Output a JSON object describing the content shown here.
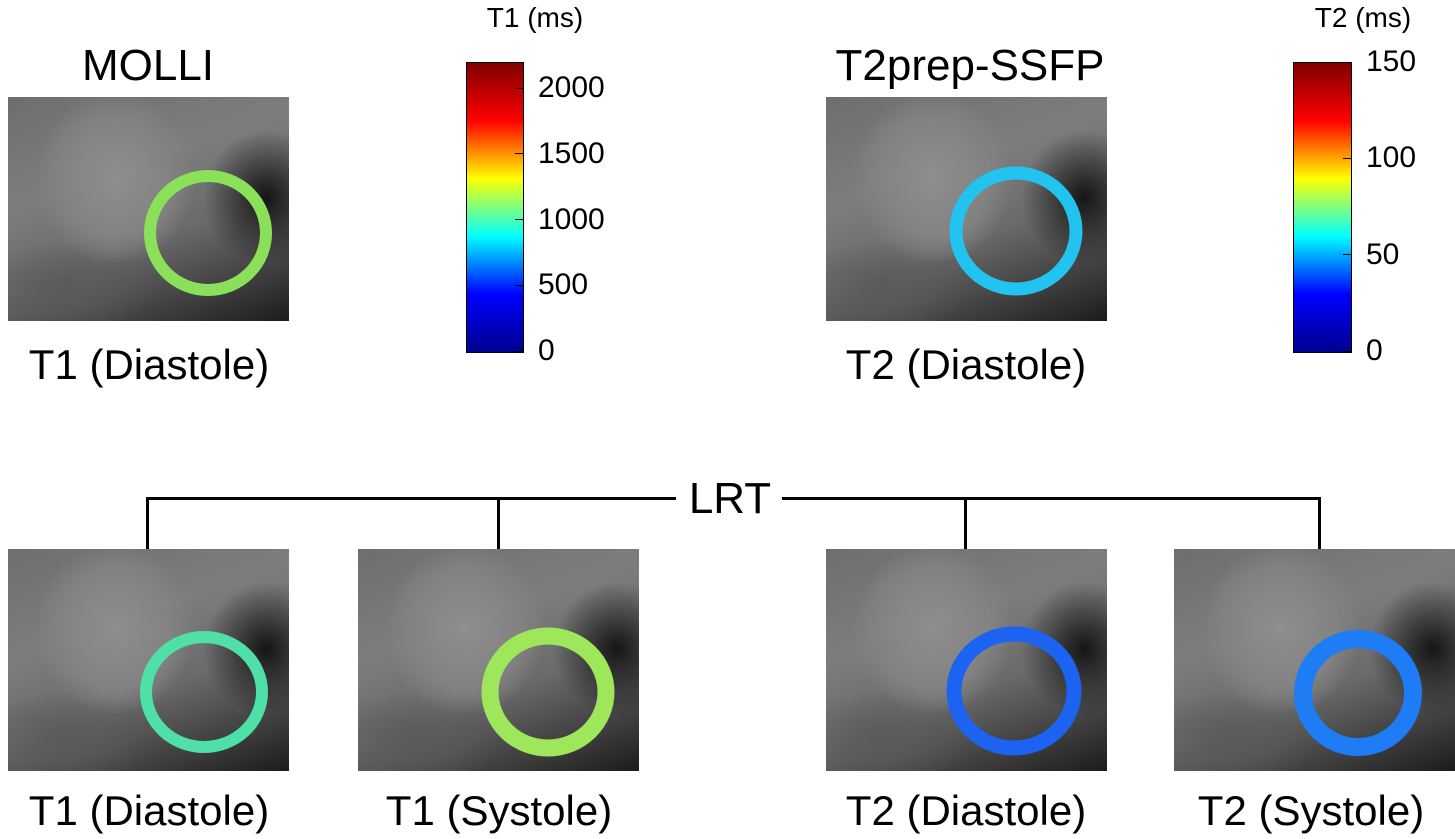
{
  "top": {
    "molli_title": "MOLLI",
    "t2prep_title": "T2prep-SSFP",
    "molli_caption": "T1 (Diastole)",
    "t2prep_caption": "T2 (Diastole)"
  },
  "colorbars": {
    "t1": {
      "unit": "T1 (ms)",
      "min": 0,
      "max": 2200,
      "ticks": [
        "2000",
        "1500",
        "1000",
        "500",
        "0"
      ],
      "tick_values": [
        2000,
        1500,
        1000,
        500,
        0
      ]
    },
    "t2": {
      "unit": "T2 (ms)",
      "min": 0,
      "max": 150,
      "ticks": [
        "150",
        "100",
        "50",
        "0"
      ],
      "tick_values": [
        150,
        100,
        50,
        0
      ]
    }
  },
  "colormap": [
    "#00008f",
    "#0000ff",
    "#00ffff",
    "#ffff00",
    "#ff0000",
    "#800000"
  ],
  "bottom": {
    "group_label": "LRT",
    "captions": [
      "T1 (Diastole)",
      "T1 (Systole)",
      "T2 (Diastole)",
      "T2 (Systole)"
    ]
  },
  "ring_colors": {
    "molli_t1": "#8be05a",
    "t2prep_t2": "#22c3ee",
    "lrt_t1_diastole": "#4fe0a8",
    "lrt_t1_systole": "#9ee65a",
    "lrt_t2_diastole": "#1b63f0",
    "lrt_t2_systole": "#1e7cf5"
  }
}
